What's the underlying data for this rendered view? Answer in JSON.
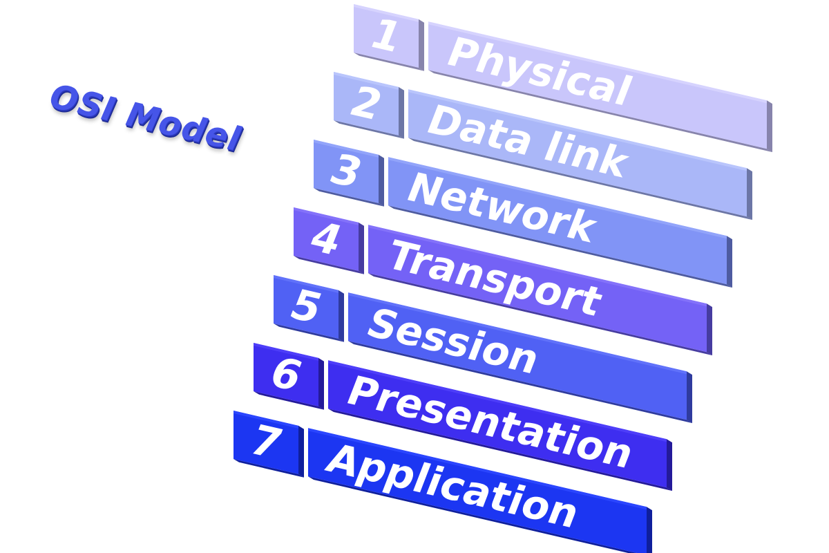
{
  "title": "OSI Model",
  "layers": [
    {
      "number": "7",
      "name": "Application",
      "color": "#1c36f2",
      "light": "#2e48ff",
      "dark": "#0f1f9c"
    },
    {
      "number": "6",
      "name": "Presentation",
      "color": "#3e2ef0",
      "light": "#5040fa",
      "dark": "#241a9a"
    },
    {
      "number": "5",
      "name": "Session",
      "color": "#5061f4",
      "light": "#6374fb",
      "dark": "#2f3b9e"
    },
    {
      "number": "4",
      "name": "Transport",
      "color": "#7462f6",
      "light": "#8674fb",
      "dark": "#463ca0"
    },
    {
      "number": "3",
      "name": "Network",
      "color": "#8194f6",
      "light": "#93a5fb",
      "dark": "#4e5ba0"
    },
    {
      "number": "2",
      "name": "Data link",
      "color": "#aab7f8",
      "light": "#bac6fc",
      "dark": "#6c76a6"
    },
    {
      "number": "1",
      "name": "Physical",
      "color": "#c9c6fb",
      "light": "#d7d4fe",
      "dark": "#8784ac"
    }
  ]
}
